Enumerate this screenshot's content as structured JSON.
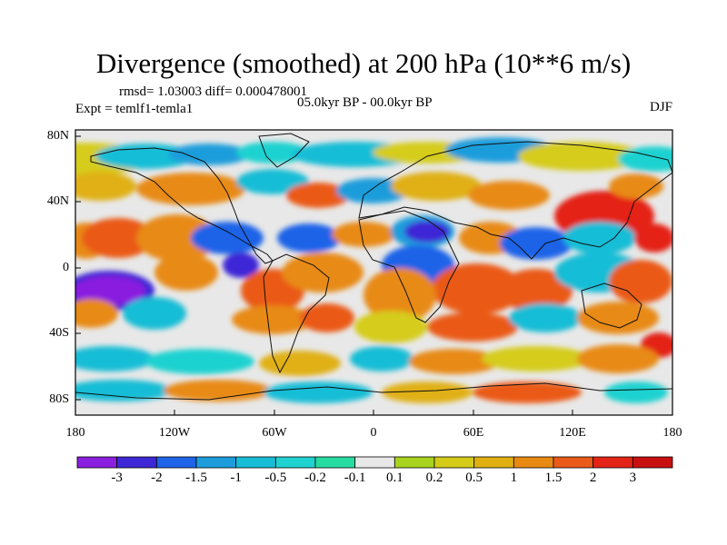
{
  "title": "Divergence (smoothed) at 200 hPa (10**6 m/s)",
  "stats_line": "rmsd= 1.03003 diff= 0.000478001",
  "experiment_line": "Expt = temlf1-temla1",
  "period_line": "05.0kyr BP - 00.0kyr BP",
  "season": "DJF",
  "map": {
    "latitude_labels": [
      "80N",
      "40N",
      "0",
      "40S",
      "80S"
    ],
    "longitude_labels": [
      "180",
      "120W",
      "60W",
      "0",
      "60E",
      "120E",
      "180"
    ]
  },
  "colorbar": {
    "labels": [
      "-3",
      "-2",
      "-1.5",
      "-1",
      "-0.5",
      "-0.2",
      "-0.1",
      "0.1",
      "0.2",
      "0.5",
      "1",
      "1.5",
      "2",
      "3"
    ],
    "colors": [
      "#8a1fe0",
      "#3d27d6",
      "#1f63e8",
      "#1d9ddb",
      "#17bdd6",
      "#1fd2d0",
      "#27dca0",
      "#e8e8e8",
      "#a8d31e",
      "#d5cc1a",
      "#e0b012",
      "#e88a12",
      "#ea5a18",
      "#e42416",
      "#c81010"
    ]
  }
}
